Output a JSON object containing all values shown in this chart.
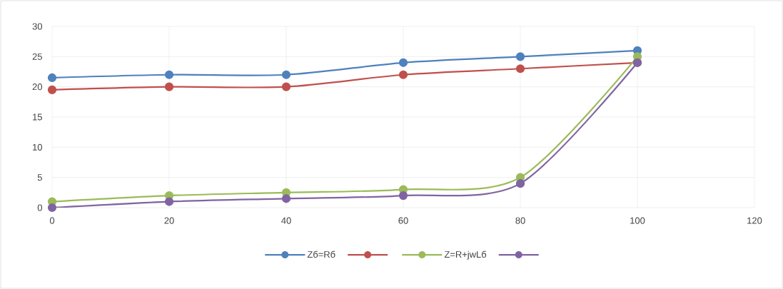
{
  "chart_data": {
    "type": "line",
    "x": [
      0,
      20,
      40,
      60,
      80,
      100
    ],
    "series": [
      {
        "name": "Zб=Rб",
        "color": "#4f81bd",
        "values": [
          21.5,
          22,
          22,
          24,
          25,
          26
        ]
      },
      {
        "color": "#c0504d",
        "values": [
          19.5,
          20,
          20,
          22,
          23,
          24
        ]
      },
      {
        "name": "Z=R+jwLб",
        "color": "#9bbb59",
        "values": [
          1,
          2,
          2.5,
          3,
          5,
          25
        ]
      },
      {
        "color": "#8064a2",
        "values": [
          0,
          1,
          1.5,
          2,
          4,
          24
        ]
      }
    ],
    "xlim": [
      0,
      120
    ],
    "xticks": [
      0,
      20,
      40,
      60,
      80,
      100,
      120
    ],
    "ylim": [
      0,
      30
    ],
    "yticks": [
      0,
      5,
      10,
      15,
      20,
      25,
      30
    ],
    "grid": true,
    "legend": "bottom",
    "marker": "circle",
    "line_style": "solid"
  }
}
